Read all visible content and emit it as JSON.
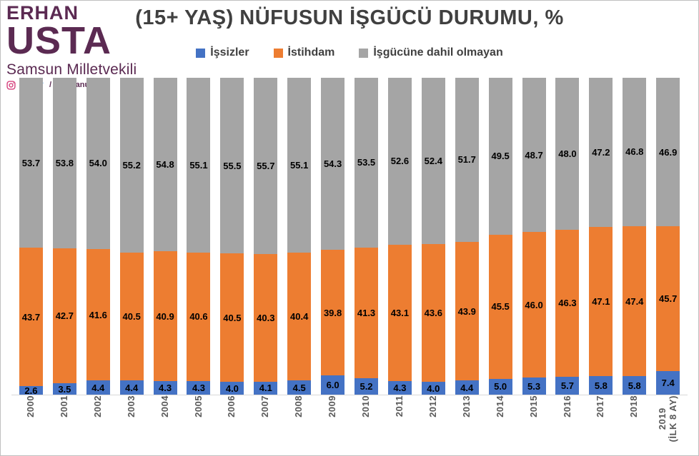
{
  "header": {
    "logo": {
      "line1": "ERHAN",
      "line2": "USTA",
      "subtitle": "Samsun Milletvekili",
      "social_handle": "/ 5Serhanusta"
    },
    "title": "(15+ YAŞ) NÜFUSUN İŞGÜCÜ DURUMU, %"
  },
  "chart_data": {
    "type": "bar",
    "stacked": true,
    "title": "(15+ YAŞ) NÜFUSUN İŞGÜCÜ DURUMU, %",
    "categories": [
      "2000",
      "2001",
      "2002",
      "2003",
      "2004",
      "2005",
      "2006",
      "2007",
      "2008",
      "2009",
      "2010",
      "2011",
      "2012",
      "2013",
      "2014",
      "2015",
      "2016",
      "2017",
      "2018",
      "2019 (İLK 8 AY)"
    ],
    "series": [
      {
        "name": "İşsizler",
        "color": "#4472C4",
        "values": [
          2.6,
          3.5,
          4.4,
          4.4,
          4.3,
          4.3,
          4.0,
          4.1,
          4.5,
          6.0,
          5.2,
          4.3,
          4.0,
          4.4,
          5.0,
          5.3,
          5.7,
          5.8,
          5.8,
          7.4
        ]
      },
      {
        "name": "İstihdam",
        "color": "#ED7D31",
        "values": [
          43.7,
          42.7,
          41.6,
          40.5,
          40.9,
          40.6,
          40.5,
          40.3,
          40.4,
          39.8,
          41.3,
          43.1,
          43.6,
          43.9,
          45.5,
          46.0,
          46.3,
          47.1,
          47.4,
          45.7
        ]
      },
      {
        "name": "İşgücüne dahil olmayan",
        "color": "#A5A5A5",
        "values": [
          53.7,
          53.8,
          54.0,
          55.2,
          54.8,
          55.1,
          55.5,
          55.7,
          55.1,
          54.3,
          53.5,
          52.6,
          52.4,
          51.7,
          49.5,
          48.7,
          48.0,
          47.2,
          46.8,
          46.9
        ]
      }
    ],
    "ylim": [
      0,
      100
    ],
    "grid": false,
    "legend_position": "top",
    "data_labels": true
  },
  "colors": {
    "unemployed": "#4472C4",
    "employed": "#ED7D31",
    "not_in_labor_force": "#A5A5A5",
    "title_text": "#404040",
    "axis_label": "#595959",
    "logo": "#5B2A52",
    "axis_line": "#D9D9D9",
    "facebook": "#3B5998",
    "twitter": "#4AA1EB",
    "instagram": "#D6427E"
  }
}
